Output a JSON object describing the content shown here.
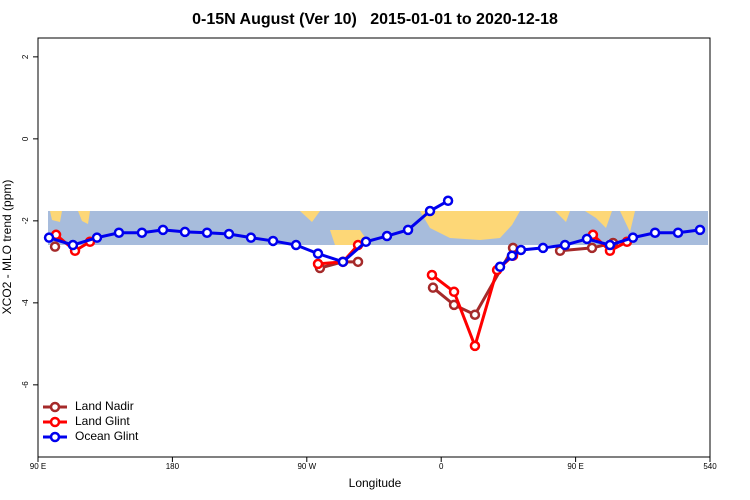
{
  "chart_data": {
    "type": "line",
    "title": "0-15N August (Ver 10)   2015-01-01 to 2020-12-18",
    "x_label": "Longitude",
    "y_label": "XCO2 - MLO trend (ppm)",
    "xlim": [
      90,
      540
    ],
    "ylim": [
      -7.76,
      2.46
    ],
    "xticks": [
      {
        "value": 90,
        "label": "90 E"
      },
      180,
      {
        "value": 270,
        "label": "90 W"
      },
      {
        "value": 360,
        "label": "0"
      },
      {
        "value": 450,
        "label": "90 E"
      },
      540
    ],
    "yticks": [
      -6,
      -4,
      -2,
      0,
      2
    ],
    "legend": "bottom-left",
    "series": [
      {
        "name": "Land Nadir",
        "color": "#a52a2a",
        "x": [
          101.4,
          240,
          278.8,
          294.2,
          304.3,
          330,
          354.5,
          368.6,
          382.6,
          408.1,
          420,
          439.6,
          461.0,
          475.1
        ],
        "values": [
          -2.63,
          null,
          -3.15,
          -3.0,
          -3.0,
          null,
          -3.63,
          -4.05,
          -4.29,
          -2.66,
          null,
          -2.73,
          -2.66,
          -2.54
        ]
      },
      {
        "name": "Land Glint",
        "color": "#ff0000",
        "x": [
          102.1,
          114.8,
          124.8,
          240,
          277.5,
          294.2,
          304.3,
          330,
          353.8,
          368.6,
          382.6,
          397.4,
          408.1,
          440,
          461.6,
          473.0,
          484.4
        ],
        "values": [
          -2.34,
          -2.73,
          -2.51,
          null,
          -3.05,
          -3.0,
          -2.59,
          null,
          -3.32,
          -3.73,
          -5.05,
          -3.2,
          -2.85,
          null,
          -2.34,
          -2.73,
          -2.51
        ]
      },
      {
        "name": "Ocean Glint",
        "color": "#0000ee",
        "x": [
          97.4,
          113.4,
          129.5,
          144.2,
          159.6,
          173.7,
          188.4,
          203.2,
          217.9,
          232.6,
          247.4,
          262.8,
          277.5,
          294.2,
          309.6,
          323.7,
          337.8,
          352.5,
          364.6,
          385,
          399.4,
          407.4,
          413.4,
          428.2,
          442.9,
          457.6,
          473.0,
          488.4,
          503.2,
          518.6,
          533.3
        ],
        "values": [
          -2.41,
          -2.59,
          -2.41,
          -2.29,
          -2.29,
          -2.22,
          -2.27,
          -2.29,
          -2.32,
          -2.41,
          -2.49,
          -2.59,
          -2.8,
          -3.0,
          -2.51,
          -2.37,
          -2.22,
          -1.76,
          -1.51,
          null,
          -3.12,
          -2.85,
          -2.71,
          -2.66,
          -2.59,
          -2.44,
          -2.59,
          -2.41,
          -2.29,
          -2.29,
          -2.22
        ]
      }
    ]
  }
}
